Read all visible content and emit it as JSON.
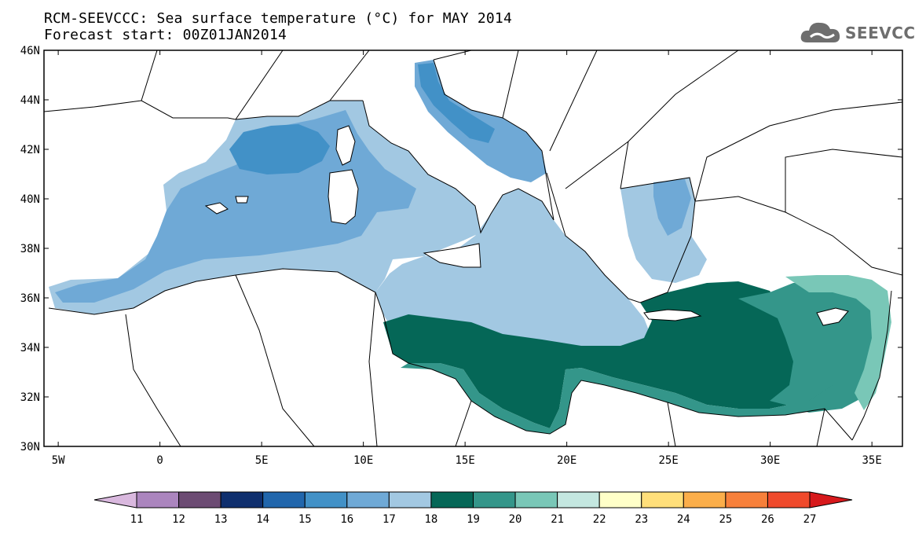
{
  "header": {
    "title": "RCM-SEEVCCC: Sea surface temperature (°C) for MAY 2014",
    "subtitle": "Forecast start: 00Z01JAN2014"
  },
  "logo": {
    "text": "SEEVCCC",
    "icon": "cloud-icon",
    "color": "#6e6e6e"
  },
  "map": {
    "lat_labels": [
      "46N",
      "44N",
      "42N",
      "40N",
      "38N",
      "36N",
      "34N",
      "32N",
      "30N"
    ],
    "lon_labels": [
      "5W",
      "0",
      "5E",
      "10E",
      "15E",
      "20E",
      "25E",
      "30E",
      "35E"
    ],
    "lat_range": [
      30,
      46
    ],
    "lon_range": [
      -5.7,
      36.5
    ]
  },
  "colorbar": {
    "labels": [
      "11",
      "12",
      "13",
      "14",
      "15",
      "16",
      "17",
      "18",
      "19",
      "20",
      "21",
      "22",
      "23",
      "24",
      "25",
      "26",
      "27"
    ],
    "colors": [
      "#d9b8de",
      "#ab85be",
      "#6c4b73",
      "#0f2f6e",
      "#2166ac",
      "#4291c7",
      "#6fa9d6",
      "#a2c8e2",
      "#056757",
      "#34968a",
      "#79c7b7",
      "#c4e7e0",
      "#ffffc8",
      "#ffdf7a",
      "#fbae4a",
      "#f7803b",
      "#ef4a2c",
      "#d7191c"
    ]
  }
}
